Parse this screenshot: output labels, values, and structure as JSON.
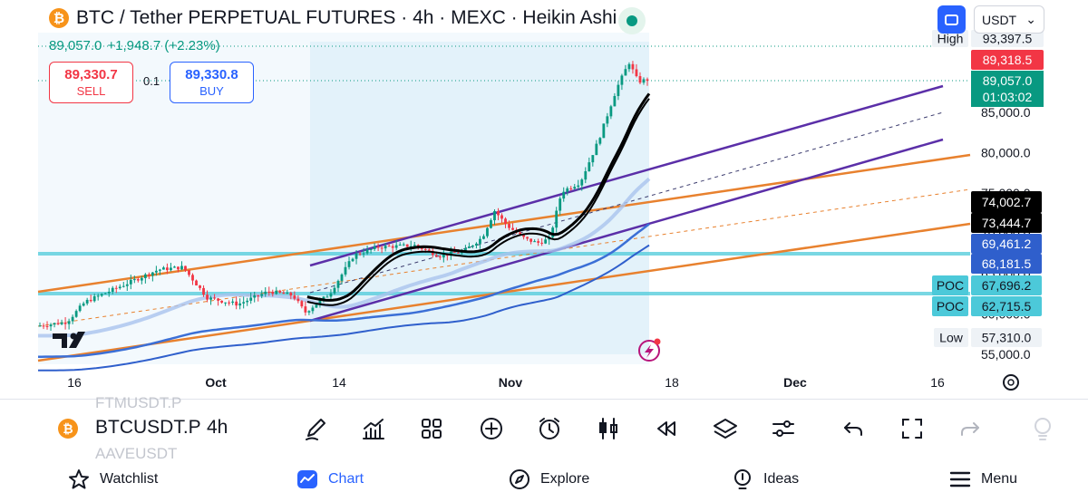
{
  "header": {
    "logo_glyph": "₿",
    "title": "BTC / Tether PERPETUAL FUTURES · 4h · MEXC · Heikin Ashi",
    "last_price": "89,057.0",
    "change": "+1,948.7 (+2.23%)"
  },
  "trade": {
    "sell_price": "89,330.7",
    "sell_label": "SELL",
    "qty": "0.1",
    "buy_price": "89,330.8",
    "buy_label": "BUY"
  },
  "top_right": {
    "currency": "USDT",
    "currency_chevron": "⌄"
  },
  "colors": {
    "up": "#089981",
    "down": "#f23645",
    "accent": "#2962ff",
    "channel_purple": "#5b2fa8",
    "channel_orange": "#e8812e",
    "poc_cyan": "#4cc9d9",
    "ma_black": "#000000"
  },
  "price_axis": {
    "ticks": [
      "85,000.0",
      "80,000.0",
      "75,000.0",
      "70,000.0",
      "65,000.0",
      "60,000.0",
      "55,000.0"
    ],
    "badges": {
      "high_label": "High",
      "high_value": "93,397.5",
      "ask": "89,318.5",
      "last": "89,057.0",
      "countdown": "01:03:02",
      "ma1": "74,002.7",
      "ma2": "73,444.7",
      "band1": "69,461.2",
      "band2": "68,181.5",
      "poc_label": "POC",
      "poc1": "67,696.2",
      "poc2": "62,715.5",
      "low_label": "Low",
      "low_value": "57,310.0"
    }
  },
  "time_axis": {
    "ticks": [
      "16",
      "Oct",
      "14",
      "Nov",
      "18",
      "Dec",
      "16"
    ]
  },
  "chart_data": {
    "type": "candlestick",
    "title": "BTC / Tether PERPETUAL FUTURES · 4h · MEXC · Heikin Ashi",
    "ylim": [
      54000,
      94000
    ],
    "x_ticks": [
      "16",
      "Oct",
      "14",
      "Nov",
      "18",
      "Dec",
      "16"
    ],
    "path_keypoints": [
      {
        "t": 0,
        "v": 58500
      },
      {
        "t": 0.05,
        "v": 59000
      },
      {
        "t": 0.08,
        "v": 61500
      },
      {
        "t": 0.14,
        "v": 63500
      },
      {
        "t": 0.2,
        "v": 65500
      },
      {
        "t": 0.24,
        "v": 65800
      },
      {
        "t": 0.28,
        "v": 62000
      },
      {
        "t": 0.33,
        "v": 61200
      },
      {
        "t": 0.38,
        "v": 62800
      },
      {
        "t": 0.42,
        "v": 62300
      },
      {
        "t": 0.44,
        "v": 60200
      },
      {
        "t": 0.48,
        "v": 62500
      },
      {
        "t": 0.52,
        "v": 67300
      },
      {
        "t": 0.56,
        "v": 68300
      },
      {
        "t": 0.62,
        "v": 68500
      },
      {
        "t": 0.66,
        "v": 67200
      },
      {
        "t": 0.7,
        "v": 67800
      },
      {
        "t": 0.73,
        "v": 69500
      },
      {
        "t": 0.75,
        "v": 72800
      },
      {
        "t": 0.77,
        "v": 71000
      },
      {
        "t": 0.8,
        "v": 69300
      },
      {
        "t": 0.82,
        "v": 68800
      },
      {
        "t": 0.84,
        "v": 69300
      },
      {
        "t": 0.86,
        "v": 75200
      },
      {
        "t": 0.89,
        "v": 76300
      },
      {
        "t": 0.92,
        "v": 81500
      },
      {
        "t": 0.95,
        "v": 88000
      },
      {
        "t": 0.97,
        "v": 91200
      },
      {
        "t": 0.985,
        "v": 88800
      },
      {
        "t": 1,
        "v": 89057
      }
    ],
    "last": 89057.0,
    "high": 93397.5,
    "low": 57310.0,
    "poc_levels": [
      67696.2,
      62715.5
    ],
    "indicator_levels": [
      74002.7,
      73444.7,
      69461.2,
      68181.5
    ]
  },
  "bottom_toolbar": {
    "symbol_logo": "₿",
    "symbol": "BTCUSDT.P",
    "timeframe": "4h",
    "ghost_above": "FTMUSDT.P",
    "ghost_below": "AAVEUSDT"
  },
  "nav": {
    "watchlist": "Watchlist",
    "chart": "Chart",
    "explore": "Explore",
    "ideas": "Ideas",
    "menu": "Menu"
  }
}
